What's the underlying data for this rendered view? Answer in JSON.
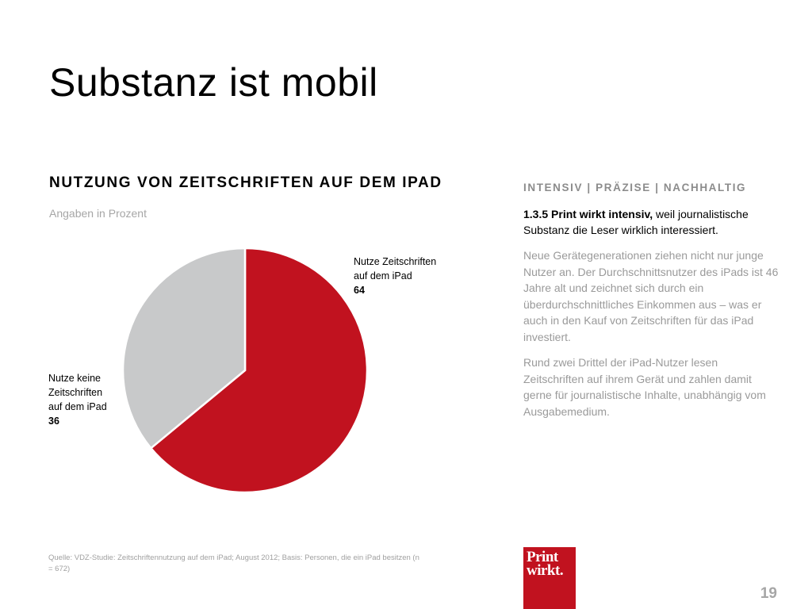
{
  "slide": {
    "title": "Substanz ist mobil",
    "page_number": "19"
  },
  "chart_data": {
    "type": "pie",
    "title": "NUTZUNG VON ZEITSCHRIFTEN AUF DEM IPAD",
    "subtitle": "Angaben in Prozent",
    "slices": [
      {
        "label_lines": [
          "Nutze Zeitschriften",
          "auf dem iPad"
        ],
        "value": 64,
        "color": "#c1121f"
      },
      {
        "label_lines": [
          "Nutze keine",
          "Zeitschriften",
          "auf dem iPad"
        ],
        "value": 36,
        "color": "#c8c9ca"
      }
    ]
  },
  "sidebar": {
    "heading": "INTENSIV | PRÄZISE | NACHHALTIG",
    "intro_bold": "1.3.5 Print wirkt intensiv,",
    "intro_rest": " weil journalistische Substanz die Leser wirklich interessiert.",
    "paragraph_1": "Neue Gerätegenerationen ziehen nicht nur junge Nutzer an. Der Durchschnittsnutzer des iPads ist 46 Jahre alt und zeichnet sich durch ein überdurchschnittliches Einkommen aus – was er auch in den Kauf von Zeitschriften für das iPad investiert.",
    "paragraph_2": "Rund zwei Drittel der iPad-Nutzer lesen Zeitschriften auf ihrem Gerät und zahlen damit gerne für journalistische Inhalte, unabhängig vom Ausgabemedium."
  },
  "footer": {
    "source": "Quelle: VDZ-Studie: Zeitschriftennutzung auf dem iPad; August 2012; Basis: Personen, die ein iPad besitzen (n = 672)",
    "logo_line1": "Print",
    "logo_line2": "wirkt."
  }
}
